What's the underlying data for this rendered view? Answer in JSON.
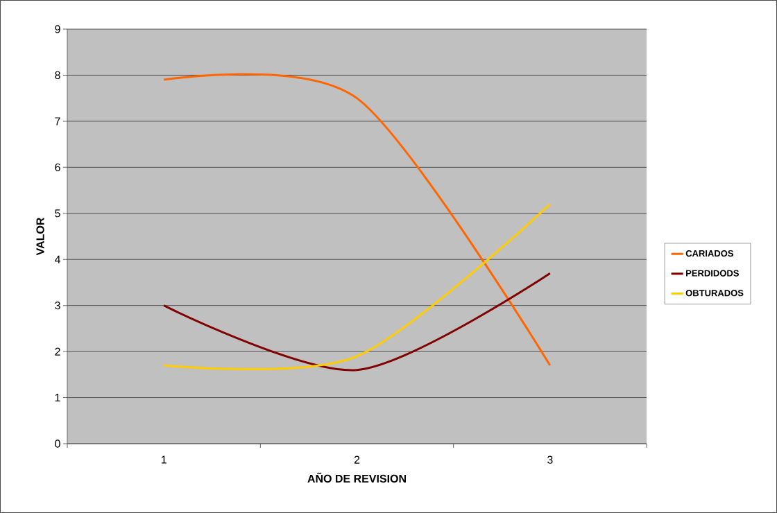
{
  "chart_data": {
    "type": "line",
    "xlabel": "AÑO DE REVISION",
    "ylabel": "VALOR",
    "categories": [
      "1",
      "2",
      "3"
    ],
    "series": [
      {
        "name": "CARIADOS",
        "color": "#ff6600",
        "values": [
          7.9,
          7.5,
          1.7
        ]
      },
      {
        "name": "PERDIDODS",
        "color": "#800000",
        "values": [
          3.0,
          1.6,
          3.7
        ]
      },
      {
        "name": "OBTURADOS",
        "color": "#ffcc00",
        "values": [
          1.7,
          1.9,
          5.2
        ]
      }
    ],
    "ylim": [
      0,
      9
    ],
    "yticks": [
      0,
      1,
      2,
      3,
      4,
      5,
      6,
      7,
      8,
      9
    ],
    "grid": "y",
    "legend": "right",
    "marker": "none",
    "line_style": "solid"
  }
}
